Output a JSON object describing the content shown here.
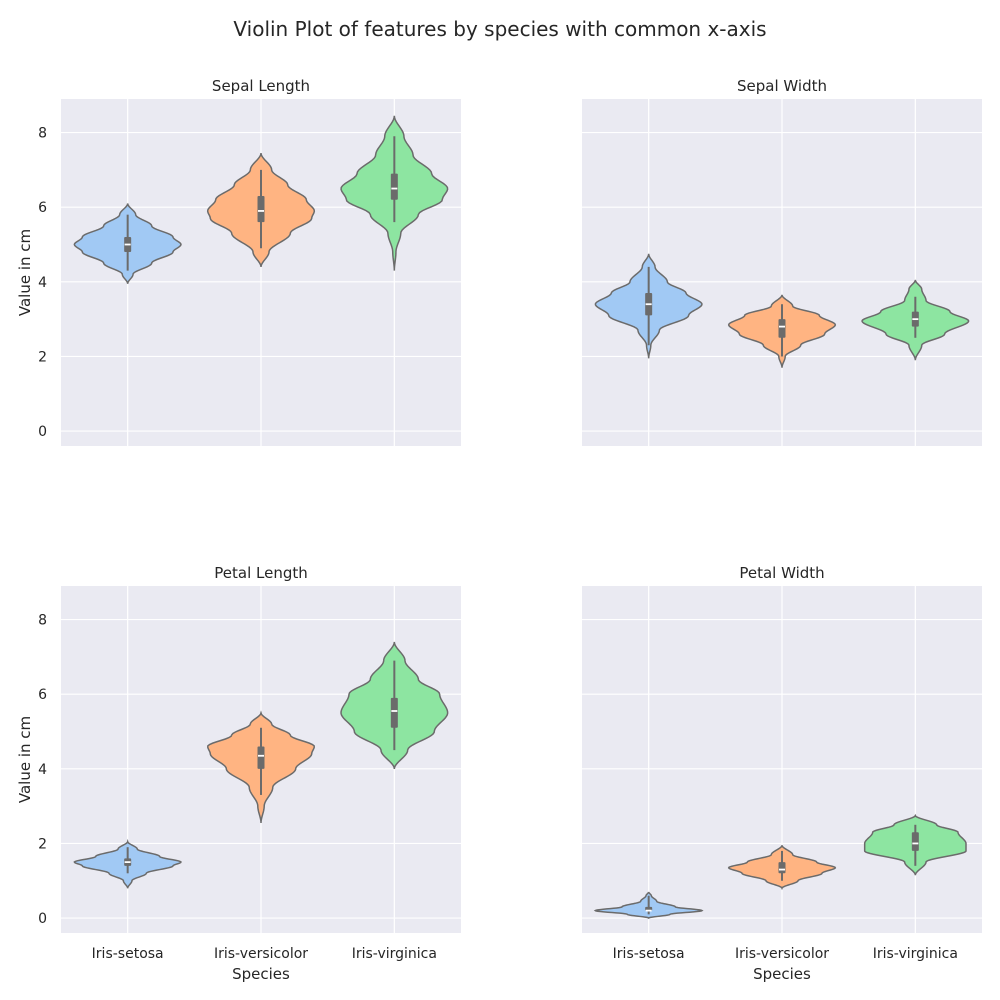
{
  "suptitle": "Violin Plot of features by species with common x-axis",
  "colors": {
    "background": "#eaeaf2",
    "grid": "#ffffff",
    "violin_edge": "#6b6b6b",
    "box": "#6b6b6b",
    "median": "#ffffff",
    "species": [
      "#a1c9f4",
      "#ffb482",
      "#8de5a1"
    ]
  },
  "chart_data": [
    {
      "type": "violin",
      "title": "Sepal Length",
      "xlabel": "",
      "ylabel": "Value in cm",
      "categories": [
        "Iris-setosa",
        "Iris-versicolor",
        "Iris-virginica"
      ],
      "ylim": [
        -0.4,
        8.9
      ],
      "yticks": [
        0,
        2,
        4,
        6,
        8
      ],
      "show_xtick_labels": false,
      "grid": true,
      "violins": [
        {
          "species": "Iris-setosa",
          "range": [
            3.95,
            6.1
          ],
          "min": 4.3,
          "q1": 4.8,
          "median": 5.0,
          "q3": 5.2,
          "max": 5.8,
          "width": 0.4,
          "profile": [
            [
              3.95,
              0
            ],
            [
              4.2,
              0.1
            ],
            [
              4.5,
              0.45
            ],
            [
              4.8,
              0.85
            ],
            [
              5.0,
              1.0
            ],
            [
              5.2,
              0.85
            ],
            [
              5.5,
              0.45
            ],
            [
              5.8,
              0.15
            ],
            [
              6.1,
              0
            ]
          ]
        },
        {
          "species": "Iris-versicolor",
          "range": [
            4.4,
            7.45
          ],
          "min": 4.9,
          "q1": 5.6,
          "median": 5.9,
          "q3": 6.3,
          "max": 7.0,
          "width": 0.4,
          "profile": [
            [
              4.4,
              0
            ],
            [
              4.8,
              0.15
            ],
            [
              5.3,
              0.55
            ],
            [
              5.7,
              0.95
            ],
            [
              5.9,
              1.0
            ],
            [
              6.2,
              0.85
            ],
            [
              6.6,
              0.5
            ],
            [
              7.0,
              0.2
            ],
            [
              7.45,
              0
            ]
          ]
        },
        {
          "species": "Iris-virginica",
          "range": [
            4.3,
            8.45
          ],
          "min": 5.6,
          "q1": 6.2,
          "median": 6.5,
          "q3": 6.9,
          "max": 7.9,
          "width": 0.4,
          "profile": [
            [
              4.3,
              0
            ],
            [
              4.8,
              0.03
            ],
            [
              5.3,
              0.12
            ],
            [
              5.8,
              0.45
            ],
            [
              6.2,
              0.9
            ],
            [
              6.5,
              1.0
            ],
            [
              6.9,
              0.7
            ],
            [
              7.4,
              0.35
            ],
            [
              7.9,
              0.18
            ],
            [
              8.45,
              0
            ]
          ]
        }
      ]
    },
    {
      "type": "violin",
      "title": "Sepal Width",
      "xlabel": "",
      "ylabel": "",
      "categories": [
        "Iris-setosa",
        "Iris-versicolor",
        "Iris-virginica"
      ],
      "ylim": [
        -0.4,
        8.9
      ],
      "yticks": [
        0,
        2,
        4,
        6,
        8
      ],
      "show_xtick_labels": false,
      "show_ytick_labels": false,
      "grid": true,
      "violins": [
        {
          "species": "Iris-setosa",
          "range": [
            1.95,
            4.75
          ],
          "min": 2.3,
          "q1": 3.1,
          "median": 3.4,
          "q3": 3.7,
          "max": 4.4,
          "width": 0.4,
          "profile": [
            [
              1.95,
              0
            ],
            [
              2.3,
              0.04
            ],
            [
              2.7,
              0.2
            ],
            [
              3.1,
              0.75
            ],
            [
              3.4,
              1.0
            ],
            [
              3.7,
              0.7
            ],
            [
              4.0,
              0.35
            ],
            [
              4.4,
              0.12
            ],
            [
              4.75,
              0
            ]
          ]
        },
        {
          "species": "Iris-versicolor",
          "range": [
            1.7,
            3.65
          ],
          "min": 2.0,
          "q1": 2.5,
          "median": 2.8,
          "q3": 3.0,
          "max": 3.4,
          "width": 0.4,
          "profile": [
            [
              1.7,
              0
            ],
            [
              2.0,
              0.06
            ],
            [
              2.3,
              0.35
            ],
            [
              2.6,
              0.8
            ],
            [
              2.85,
              1.0
            ],
            [
              3.1,
              0.7
            ],
            [
              3.35,
              0.2
            ],
            [
              3.65,
              0
            ]
          ]
        },
        {
          "species": "Iris-virginica",
          "range": [
            1.9,
            4.05
          ],
          "min": 2.5,
          "q1": 2.8,
          "median": 3.0,
          "q3": 3.2,
          "max": 3.6,
          "width": 0.4,
          "profile": [
            [
              1.9,
              0
            ],
            [
              2.3,
              0.12
            ],
            [
              2.6,
              0.55
            ],
            [
              2.95,
              1.0
            ],
            [
              3.2,
              0.65
            ],
            [
              3.5,
              0.2
            ],
            [
              3.8,
              0.12
            ],
            [
              4.05,
              0
            ]
          ]
        }
      ]
    },
    {
      "type": "violin",
      "title": "Petal Length",
      "xlabel": "Species",
      "ylabel": "Value in cm",
      "categories": [
        "Iris-setosa",
        "Iris-versicolor",
        "Iris-virginica"
      ],
      "ylim": [
        -0.4,
        8.9
      ],
      "yticks": [
        0,
        2,
        4,
        6,
        8
      ],
      "show_xtick_labels": true,
      "grid": true,
      "violins": [
        {
          "species": "Iris-setosa",
          "range": [
            0.8,
            2.05
          ],
          "min": 1.2,
          "q1": 1.4,
          "median": 1.5,
          "q3": 1.6,
          "max": 1.9,
          "width": 0.4,
          "profile": [
            [
              0.8,
              0
            ],
            [
              1.0,
              0.08
            ],
            [
              1.2,
              0.35
            ],
            [
              1.4,
              0.85
            ],
            [
              1.5,
              1.0
            ],
            [
              1.65,
              0.6
            ],
            [
              1.85,
              0.18
            ],
            [
              2.05,
              0
            ]
          ]
        },
        {
          "species": "Iris-versicolor",
          "range": [
            2.55,
            5.5
          ],
          "min": 3.3,
          "q1": 4.0,
          "median": 4.35,
          "q3": 4.6,
          "max": 5.1,
          "width": 0.4,
          "profile": [
            [
              2.55,
              0
            ],
            [
              3.0,
              0.06
            ],
            [
              3.5,
              0.22
            ],
            [
              4.0,
              0.65
            ],
            [
              4.4,
              0.95
            ],
            [
              4.6,
              1.0
            ],
            [
              4.9,
              0.55
            ],
            [
              5.2,
              0.2
            ],
            [
              5.5,
              0
            ]
          ]
        },
        {
          "species": "Iris-virginica",
          "range": [
            4.0,
            7.4
          ],
          "min": 4.5,
          "q1": 5.1,
          "median": 5.55,
          "q3": 5.9,
          "max": 6.9,
          "width": 0.4,
          "profile": [
            [
              4.0,
              0
            ],
            [
              4.5,
              0.25
            ],
            [
              5.0,
              0.75
            ],
            [
              5.5,
              1.0
            ],
            [
              6.0,
              0.85
            ],
            [
              6.4,
              0.45
            ],
            [
              6.9,
              0.2
            ],
            [
              7.4,
              0
            ]
          ]
        }
      ]
    },
    {
      "type": "violin",
      "title": "Petal Width",
      "xlabel": "Species",
      "ylabel": "",
      "categories": [
        "Iris-setosa",
        "Iris-versicolor",
        "Iris-virginica"
      ],
      "ylim": [
        -0.4,
        8.9
      ],
      "yticks": [
        0,
        2,
        4,
        6,
        8
      ],
      "show_xtick_labels": true,
      "show_ytick_labels": false,
      "grid": true,
      "violins": [
        {
          "species": "Iris-setosa",
          "range": [
            0.0,
            0.7
          ],
          "min": 0.1,
          "q1": 0.2,
          "median": 0.2,
          "q3": 0.3,
          "max": 0.6,
          "width": 0.4,
          "profile": [
            [
              0.0,
              0
            ],
            [
              0.1,
              0.4
            ],
            [
              0.2,
              1.0
            ],
            [
              0.3,
              0.5
            ],
            [
              0.45,
              0.15
            ],
            [
              0.6,
              0.05
            ],
            [
              0.7,
              0
            ]
          ]
        },
        {
          "species": "Iris-versicolor",
          "range": [
            0.8,
            1.95
          ],
          "min": 1.0,
          "q1": 1.2,
          "median": 1.3,
          "q3": 1.5,
          "max": 1.8,
          "width": 0.4,
          "profile": [
            [
              0.8,
              0
            ],
            [
              1.0,
              0.3
            ],
            [
              1.2,
              0.75
            ],
            [
              1.35,
              1.0
            ],
            [
              1.5,
              0.65
            ],
            [
              1.7,
              0.2
            ],
            [
              1.95,
              0
            ]
          ]
        },
        {
          "species": "Iris-virginica",
          "range": [
            1.15,
            2.75
          ],
          "min": 1.4,
          "q1": 1.8,
          "median": 2.0,
          "q3": 2.3,
          "max": 2.5,
          "width": 0.4,
          "profile": [
            [
              1.15,
              0
            ],
            [
              1.5,
              0.2
            ],
            [
              1.8,
              0.95
            ],
            [
              2.0,
              0.95
            ],
            [
              2.3,
              0.8
            ],
            [
              2.5,
              0.4
            ],
            [
              2.75,
              0
            ]
          ]
        }
      ]
    }
  ]
}
